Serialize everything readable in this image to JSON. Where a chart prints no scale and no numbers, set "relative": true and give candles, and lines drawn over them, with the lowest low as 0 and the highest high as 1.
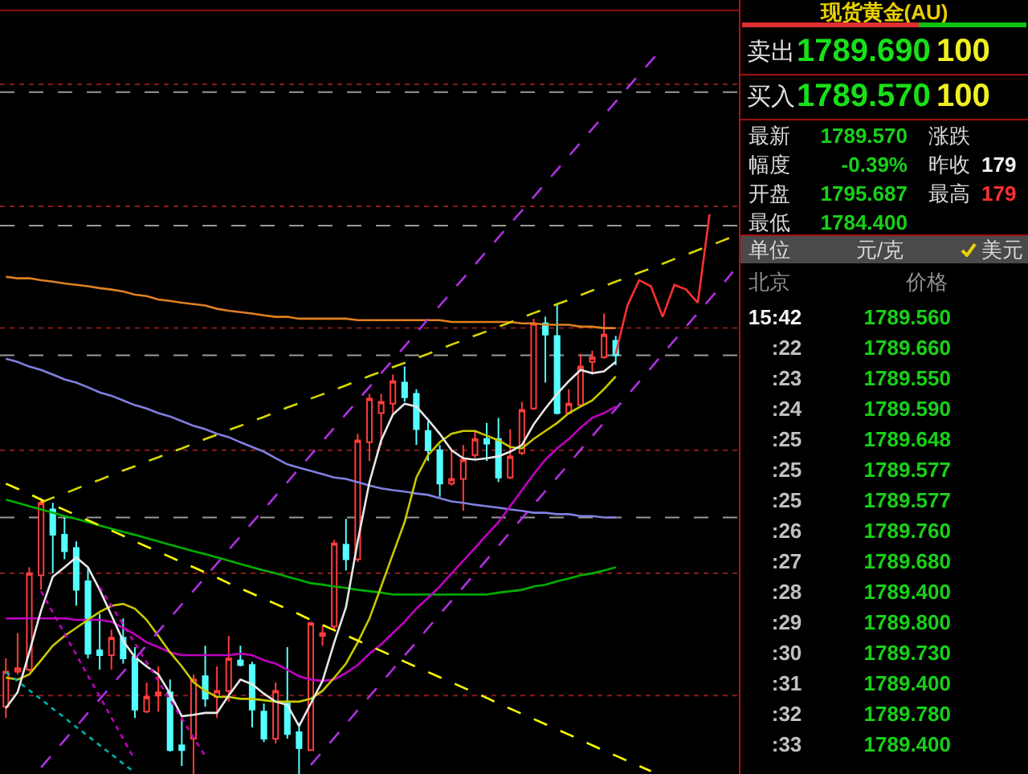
{
  "chart_data": [
    {
      "type": "candlestick",
      "relative": true,
      "categories": [
        null,
        null,
        null,
        null,
        null,
        null,
        null,
        null,
        null,
        null,
        null,
        null,
        null,
        null,
        null,
        null,
        null,
        null,
        null,
        null,
        null,
        null,
        null,
        null,
        null,
        null,
        null,
        null,
        null,
        null,
        null,
        null,
        null,
        null,
        null,
        null,
        null,
        null,
        null,
        null,
        null,
        null,
        null,
        null,
        null,
        null,
        null,
        null,
        null,
        null,
        null,
        null,
        null,
        null,
        null,
        null,
        null,
        null,
        null,
        null,
        null,
        null,
        null
      ],
      "ohlc": [
        [
          0.143,
          0.246,
          0.119,
          0.218
        ],
        [
          0.218,
          0.3,
          0.212,
          0.225
        ],
        [
          0.222,
          0.44,
          0.218,
          0.427
        ],
        [
          0.423,
          0.587,
          0.392,
          0.577
        ],
        [
          0.563,
          0.577,
          0.427,
          0.509
        ],
        [
          0.509,
          0.546,
          0.457,
          0.474
        ],
        [
          0.481,
          0.495,
          0.358,
          0.392
        ],
        [
          0.41,
          0.44,
          0.246,
          0.256
        ],
        [
          0.263,
          0.341,
          0.222,
          0.253
        ],
        [
          0.253,
          0.307,
          0.222,
          0.29
        ],
        [
          0.29,
          0.331,
          0.235,
          0.246
        ],
        [
          0.249,
          0.27,
          0.119,
          0.137
        ],
        [
          0.133,
          0.195,
          0.13,
          0.164
        ],
        [
          0.167,
          0.229,
          0.133,
          0.174
        ],
        [
          0.174,
          0.201,
          0.048,
          0.051
        ],
        [
          0.061,
          0.116,
          0.017,
          0.051
        ],
        [
          0.075,
          0.212,
          0,
          0.201
        ],
        [
          0.208,
          0.273,
          0.143,
          0.16
        ],
        [
          0.164,
          0.229,
          0.119,
          0.177
        ],
        [
          0.177,
          0.294,
          0.154,
          0.246
        ],
        [
          0.242,
          0.273,
          0.229,
          0.232
        ],
        [
          0.232,
          0.239,
          0.099,
          0.137
        ],
        [
          0.133,
          0.15,
          0.068,
          0.075
        ],
        [
          0.075,
          0.195,
          0.065,
          0.177
        ],
        [
          0.15,
          0.27,
          0.075,
          0.085
        ],
        [
          0.089,
          0.109,
          0,
          0.055
        ],
        [
          0.051,
          0.324,
          0.051,
          0.321
        ],
        [
          0.294,
          0.314,
          0.273,
          0.3
        ],
        [
          0.314,
          0.498,
          0.307,
          0.491
        ],
        [
          0.488,
          0.543,
          0.433,
          0.457
        ],
        [
          0.457,
          0.724,
          0.451,
          0.71
        ],
        [
          0.706,
          0.809,
          0.666,
          0.799
        ],
        [
          0.768,
          0.809,
          0.7,
          0.792
        ],
        [
          0.788,
          0.85,
          0.768,
          0.836
        ],
        [
          0.833,
          0.867,
          0.792,
          0.802
        ],
        [
          0.809,
          0.819,
          0.7,
          0.734
        ],
        [
          0.73,
          0.751,
          0.666,
          0.689
        ],
        [
          0.689,
          0.7,
          0.59,
          0.618
        ],
        [
          0.618,
          0.689,
          0.614,
          0.628
        ],
        [
          0.628,
          0.7,
          0.56,
          0.669
        ],
        [
          0.679,
          0.73,
          0.672,
          0.713
        ],
        [
          0.713,
          0.747,
          0.666,
          0.703
        ],
        [
          0.713,
          0.758,
          0.621,
          0.631
        ],
        [
          0.631,
          0.734,
          0.628,
          0.676
        ],
        [
          0.683,
          0.792,
          0.679,
          0.775
        ],
        [
          0.778,
          0.969,
          0.775,
          0.959
        ],
        [
          0.959,
          0.973,
          0.833,
          0.935
        ],
        [
          0.932,
          1,
          0.765,
          0.768
        ],
        [
          0.768,
          0.819,
          0.765,
          0.788
        ],
        [
          0.785,
          0.894,
          0.782,
          0.867
        ],
        [
          0.877,
          0.901,
          0.85,
          0.887
        ],
        [
          0.887,
          0.98,
          0.884,
          0.935
        ],
        [
          0.922,
          0.932,
          0.87,
          0.891
        ],
        null,
        null,
        null,
        null,
        null,
        null,
        null,
        null,
        null,
        null
      ],
      "colors": [
        "#ff3c3c",
        "#ff3c3c",
        "#ff3c3c",
        "#ff3c3c",
        "#54ffff",
        "#54ffff",
        "#54ffff",
        "#54ffff",
        "#54ffff",
        "#ff3c3c",
        "#54ffff",
        "#54ffff",
        "#ff3c3c",
        "#ff3c3c",
        "#54ffff",
        "#54ffff",
        "#ff3c3c",
        "#54ffff",
        "#ff3c3c",
        "#ff3c3c",
        "#54ffff",
        "#54ffff",
        "#54ffff",
        "#ff3c3c",
        "#54ffff",
        "#54ffff",
        "#ff3c3c",
        "#ff3c3c",
        "#ff3c3c",
        "#54ffff",
        "#ff3c3c",
        "#ff3c3c",
        "#ff3c3c",
        "#ff3c3c",
        "#54ffff",
        "#54ffff",
        "#54ffff",
        "#54ffff",
        "#ff3c3c",
        "#ff3c3c",
        "#ff3c3c",
        "#54ffff",
        "#54ffff",
        "#ff3c3c",
        "#ff3c3c",
        "#ff3c3c",
        "#54ffff",
        "#54ffff",
        "#ff3c3c",
        "#ff3c3c",
        "#ff3c3c",
        "#ff3c3c",
        "#54ffff",
        null,
        null,
        null,
        null,
        null,
        null,
        null,
        null,
        null,
        null
      ],
      "series": [
        {
          "type": "line",
          "color": "#e08020",
          "values": [
            1.058,
            1.055,
            1.055,
            1.051,
            1.048,
            1.044,
            1.041,
            1.038,
            1.034,
            1.031,
            1.027,
            1.02,
            1.017,
            1.01,
            1.007,
            1.003,
            1.0,
            0.997,
            0.99,
            0.986,
            0.983,
            0.98,
            0.976,
            0.973,
            0.973,
            0.969,
            0.969,
            0.969,
            0.969,
            0.969,
            0.966,
            0.966,
            0.966,
            0.966,
            0.966,
            0.966,
            0.966,
            0.966,
            0.962,
            0.962,
            0.962,
            0.962,
            0.962,
            0.962,
            0.959,
            0.959,
            0.956,
            0.956,
            0.956,
            0.952,
            0.952,
            0.949,
            0.949,
            null,
            null,
            null,
            null,
            null,
            null,
            null,
            null,
            null,
            null
          ]
        },
        {
          "type": "line",
          "color": "#8080e0",
          "values": [
            0.884,
            0.877,
            0.867,
            0.86,
            0.85,
            0.84,
            0.833,
            0.823,
            0.812,
            0.805,
            0.795,
            0.785,
            0.778,
            0.768,
            0.761,
            0.751,
            0.741,
            0.734,
            0.724,
            0.717,
            0.706,
            0.696,
            0.686,
            0.672,
            0.659,
            0.652,
            0.645,
            0.638,
            0.631,
            0.628,
            0.621,
            0.614,
            0.608,
            0.604,
            0.601,
            0.597,
            0.594,
            0.587,
            0.58,
            0.577,
            0.573,
            0.57,
            0.567,
            0.563,
            0.56,
            0.556,
            0.556,
            0.553,
            0.553,
            0.549,
            0.549,
            0.546,
            0.546,
            null,
            null,
            null,
            null,
            null,
            null,
            null,
            null,
            null,
            null
          ]
        },
        {
          "type": "line",
          "color": "#00b000",
          "values": [
            0.584,
            0.577,
            0.57,
            0.563,
            0.556,
            0.549,
            0.543,
            0.536,
            0.529,
            0.522,
            0.515,
            0.509,
            0.502,
            0.495,
            0.488,
            0.481,
            0.474,
            0.468,
            0.461,
            0.454,
            0.447,
            0.44,
            0.433,
            0.427,
            0.42,
            0.413,
            0.406,
            0.403,
            0.399,
            0.396,
            0.392,
            0.389,
            0.386,
            0.382,
            0.382,
            0.382,
            0.382,
            0.382,
            0.382,
            0.382,
            0.382,
            0.382,
            0.386,
            0.389,
            0.392,
            0.399,
            0.403,
            0.41,
            0.416,
            0.423,
            0.427,
            0.433,
            0.44,
            null,
            null,
            null,
            null,
            null,
            null,
            null,
            null,
            null,
            null
          ]
        },
        {
          "type": "line",
          "color": "#c000c0",
          "values": [
            0.331,
            0.331,
            0.331,
            0.331,
            0.331,
            0.331,
            0.328,
            0.328,
            0.328,
            0.324,
            0.311,
            0.297,
            0.28,
            0.27,
            0.259,
            0.253,
            0.253,
            0.253,
            0.253,
            0.253,
            0.256,
            0.253,
            0.242,
            0.235,
            0.222,
            0.208,
            0.201,
            0.198,
            0.201,
            0.215,
            0.232,
            0.256,
            0.276,
            0.3,
            0.324,
            0.352,
            0.375,
            0.399,
            0.427,
            0.454,
            0.481,
            0.509,
            0.536,
            0.57,
            0.604,
            0.638,
            0.669,
            0.693,
            0.713,
            0.737,
            0.758,
            0.768,
            0.782,
            null,
            null,
            null,
            null,
            null,
            null,
            null,
            null,
            null,
            null
          ]
        },
        {
          "type": "line",
          "color": "#c8c800",
          "values": [
            0.205,
            0.201,
            0.212,
            0.242,
            0.273,
            0.294,
            0.311,
            0.328,
            0.345,
            0.358,
            0.362,
            0.352,
            0.328,
            0.294,
            0.259,
            0.229,
            0.195,
            0.177,
            0.164,
            0.164,
            0.16,
            0.16,
            0.157,
            0.154,
            0.154,
            0.154,
            0.16,
            0.177,
            0.205,
            0.235,
            0.28,
            0.331,
            0.399,
            0.468,
            0.536,
            0.631,
            0.679,
            0.706,
            0.724,
            0.73,
            0.73,
            0.72,
            0.71,
            0.696,
            0.693,
            0.713,
            0.73,
            0.747,
            0.768,
            0.782,
            0.795,
            0.819,
            0.846,
            null,
            null,
            null,
            null,
            null,
            null,
            null,
            null,
            null,
            null
          ]
        },
        {
          "type": "line",
          "color": "#e8e8e8",
          "values": [
            0.14,
            0.174,
            0.259,
            0.348,
            0.42,
            0.44,
            0.461,
            0.44,
            0.392,
            0.338,
            0.283,
            0.249,
            0.229,
            0.212,
            0.171,
            0.123,
            0.126,
            0.13,
            0.13,
            0.167,
            0.201,
            0.191,
            0.171,
            0.154,
            0.147,
            0.102,
            0.15,
            0.198,
            0.28,
            0.355,
            0.495,
            0.621,
            0.71,
            0.765,
            0.788,
            0.782,
            0.754,
            0.724,
            0.689,
            0.672,
            0.669,
            0.672,
            0.676,
            0.686,
            0.7,
            0.744,
            0.778,
            0.809,
            0.836,
            0.86,
            0.853,
            0.857,
            0.877,
            null,
            null,
            null,
            null,
            null,
            null,
            null,
            null,
            null,
            null
          ]
        },
        {
          "type": "line",
          "color": "#ffff00",
          "line_style": "dashed",
          "values": [
            0.618,
            0.607,
            0.596,
            0.584,
            0.573,
            0.562,
            0.551,
            0.54,
            0.529,
            0.518,
            0.507,
            0.495,
            0.484,
            0.473,
            0.462,
            0.451,
            0.44,
            0.429,
            0.418,
            0.406,
            0.395,
            0.384,
            0.373,
            0.362,
            0.351,
            0.34,
            0.328,
            0.317,
            0.306,
            0.295,
            0.284,
            0.273,
            0.262,
            0.251,
            0.239,
            0.228,
            0.217,
            0.206,
            0.195,
            0.184,
            0.173,
            0.162,
            0.15,
            0.139,
            0.128,
            0.117,
            0.106,
            0.095,
            0.084,
            0.073,
            0.061,
            0.05,
            0.039,
            0.028,
            0.017,
            0.006,
            null,
            null,
            null,
            null,
            null,
            null,
            null
          ]
        },
        {
          "type": "line",
          "color": "#d8d800",
          "line_style": "dashed",
          "values": [
            null,
            null,
            null,
            0.578,
            0.588,
            0.597,
            0.607,
            0.617,
            0.626,
            0.636,
            0.646,
            0.655,
            0.665,
            0.674,
            0.684,
            0.693,
            0.703,
            0.713,
            0.722,
            0.732,
            0.741,
            0.751,
            0.76,
            0.77,
            0.78,
            0.789,
            0.799,
            0.808,
            0.818,
            0.827,
            0.837,
            0.847,
            0.856,
            0.866,
            0.875,
            0.885,
            0.894,
            0.904,
            0.914,
            0.923,
            0.933,
            0.942,
            0.952,
            0.961,
            0.971,
            0.981,
            0.99,
            1.0,
            1.009,
            1.019,
            1.029,
            1.038,
            1.048,
            1.057,
            1.067,
            1.076,
            1.086,
            1.096,
            1.105,
            1.115,
            1.124,
            1.134,
            1.144
          ]
        },
        {
          "type": "line",
          "color": "#b030e0",
          "line_style": "dashed",
          "values": [
            null,
            null,
            null,
            0.014,
            0.043,
            0.072,
            0.101,
            0.13,
            0.159,
            0.188,
            0.217,
            0.245,
            0.274,
            0.303,
            0.332,
            0.361,
            0.39,
            0.419,
            0.448,
            0.477,
            0.506,
            0.535,
            0.563,
            0.592,
            0.621,
            0.65,
            0.679,
            0.708,
            0.737,
            0.766,
            0.795,
            0.824,
            0.853,
            0.881,
            0.91,
            0.939,
            0.968,
            0.997,
            1.026,
            1.055,
            1.084,
            1.113,
            1.142,
            1.171,
            1.199,
            1.228,
            1.257,
            1.286,
            1.315,
            1.344,
            1.373,
            1.402,
            1.431,
            1.46,
            1.489,
            1.517,
            1.546,
            null,
            null,
            null,
            null,
            null,
            null
          ]
        },
        {
          "type": "line",
          "color": "#b030e0",
          "line_style": "dashed",
          "values": [
            null,
            null,
            null,
            null,
            null,
            null,
            null,
            null,
            null,
            null,
            null,
            null,
            null,
            null,
            null,
            null,
            null,
            null,
            null,
            null,
            null,
            null,
            null,
            null,
            null,
            null,
            0.019,
            0.048,
            0.077,
            0.106,
            0.136,
            0.165,
            0.194,
            0.223,
            0.252,
            0.281,
            0.311,
            0.34,
            0.369,
            0.398,
            0.427,
            0.456,
            0.485,
            0.515,
            0.544,
            0.573,
            0.602,
            0.631,
            0.66,
            0.69,
            0.719,
            0.748,
            0.777,
            0.806,
            0.835,
            0.864,
            0.894,
            0.923,
            0.952,
            0.981,
            1.01,
            1.039,
            1.069
          ]
        },
        {
          "type": "line",
          "color": "#00b0b0",
          "line_style": "dotted",
          "values": [
            0.217,
            0.198,
            0.178,
            0.159,
            0.139,
            0.12,
            0.1,
            0.081,
            0.061,
            0.042,
            0.022,
            0.003,
            null,
            null,
            null,
            null,
            null,
            null,
            null,
            null,
            null,
            null,
            null,
            null,
            null,
            null,
            null,
            null,
            null,
            null,
            null,
            null,
            null,
            null,
            null,
            null,
            null,
            null,
            null,
            null,
            null,
            null,
            null,
            null,
            null,
            null,
            null,
            null,
            null,
            null,
            null,
            null,
            null,
            null,
            null,
            null,
            null,
            null,
            null,
            null,
            null,
            null,
            null
          ]
        },
        {
          "type": "line",
          "color": "#c000c0",
          "line_style": "dotted",
          "values": [
            null,
            null,
            null,
            0.389,
            0.344,
            0.299,
            0.254,
            0.209,
            0.165,
            0.12,
            0.075,
            0.03,
            null,
            null,
            null,
            null,
            null,
            null,
            null,
            null,
            null,
            null,
            null,
            null,
            null,
            null,
            null,
            null,
            null,
            null,
            null,
            null,
            null,
            null,
            null,
            null,
            null,
            null,
            null,
            null,
            null,
            null,
            null,
            null,
            null,
            null,
            null,
            null,
            null,
            null,
            null,
            null,
            null,
            null,
            null,
            null,
            null,
            null,
            null,
            null,
            null,
            null,
            null
          ]
        },
        {
          "type": "line",
          "color": "#c000c0",
          "line_style": "dotted",
          "values": [
            null,
            null,
            null,
            null,
            null,
            null,
            null,
            null,
            0.398,
            0.358,
            0.318,
            0.278,
            0.238,
            0.198,
            0.158,
            0.118,
            0.078,
            0.038,
            null,
            null,
            null,
            null,
            null,
            null,
            null,
            null,
            null,
            null,
            null,
            null,
            null,
            null,
            null,
            null,
            null,
            null,
            null,
            null,
            null,
            null,
            null,
            null,
            null,
            null,
            null,
            null,
            null,
            null,
            null,
            null,
            null,
            null,
            null,
            null,
            null,
            null,
            null,
            null,
            null,
            null,
            null,
            null,
            null
          ]
        },
        {
          "type": "line",
          "color": "#ff3030",
          "values": [
            null,
            null,
            null,
            null,
            null,
            null,
            null,
            null,
            null,
            null,
            null,
            null,
            null,
            null,
            null,
            null,
            null,
            null,
            null,
            null,
            null,
            null,
            null,
            null,
            null,
            null,
            null,
            null,
            null,
            null,
            null,
            null,
            null,
            null,
            null,
            null,
            null,
            null,
            null,
            null,
            null,
            null,
            null,
            null,
            null,
            null,
            null,
            null,
            null,
            null,
            null,
            null,
            0.894,
            0.997,
            1.051,
            1.038,
            0.973,
            1.041,
            1.031,
            1.003,
            1.191,
            null,
            null
          ]
        }
      ],
      "ref_lines": [
        {
          "axis": "y",
          "value": 1.468,
          "color": "#8b1a1a",
          "line_style": "dotted"
        },
        {
          "axis": "y",
          "value": 1.208,
          "color": "#8b1a1a",
          "line_style": "dotted"
        },
        {
          "axis": "y",
          "value": 0.949,
          "color": "#8b1a1a",
          "line_style": "dotted"
        },
        {
          "axis": "y",
          "value": 0.689,
          "color": "#8b1a1a",
          "line_style": "dotted"
        },
        {
          "axis": "y",
          "value": 0.427,
          "color": "#8b1a1a",
          "line_style": "dotted"
        },
        {
          "axis": "y",
          "value": 0.167,
          "color": "#8b1a1a",
          "line_style": "dotted"
        },
        {
          "axis": "y",
          "value": 1.451,
          "color": "#9a9a9a",
          "line_style": "dashed"
        },
        {
          "axis": "y",
          "value": 1.167,
          "color": "#9a9a9a",
          "line_style": "dashed"
        },
        {
          "axis": "y",
          "value": 0.891,
          "color": "#9a9a9a",
          "line_style": "dashed"
        },
        {
          "axis": "y",
          "value": 0.546,
          "color": "#9a9a9a",
          "line_style": "dashed"
        }
      ]
    },
    {
      "type": "other",
      "title": "现货黄金(AU)",
      "annotations": [
        "卖出",
        "1789.690",
        "100",
        "买入",
        "1789.570",
        "100",
        "最新",
        "1789.570",
        "涨跌",
        "幅度",
        "-0.39%",
        "昨收",
        "179",
        "开盘",
        "1795.687",
        "最高",
        "179",
        "最低",
        "1784.400",
        "单位",
        "元/克",
        "美元",
        "北京",
        "价格",
        "15:42 1789.560",
        ":22 1789.660",
        ":23 1789.550",
        ":24 1789.590",
        ":25 1789.648",
        ":25 1789.577",
        ":25 1789.577",
        ":26 1789.760",
        ":27 1789.680",
        ":28 1789.400",
        ":29 1789.800",
        ":30 1789.730",
        ":31 1789.400",
        ":32 1789.780",
        ":33 1789.400"
      ]
    }
  ]
}
